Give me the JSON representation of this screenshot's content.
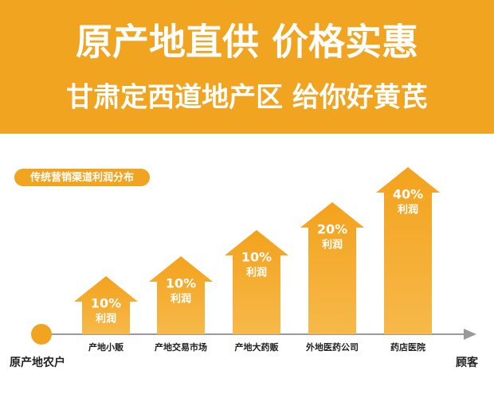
{
  "header": {
    "title": "原产地直供 价格实惠",
    "subtitle": "甘肃定西道地产区 给你好黄芪"
  },
  "section_label": "传统营销渠道利润分布",
  "stages": [
    {
      "profit": "10%",
      "profit_word": "利润",
      "name": "产地小贩"
    },
    {
      "profit": "10%",
      "profit_word": "利润",
      "name": "产地交易市场"
    },
    {
      "profit": "10%",
      "profit_word": "利润",
      "name": "产地大药贩"
    },
    {
      "profit": "20%",
      "profit_word": "利润",
      "name": "外地医药公司"
    },
    {
      "profit": "40%",
      "profit_word": "利润",
      "name": "药店医院"
    }
  ],
  "start": "原产地农户",
  "end": "顾客"
}
